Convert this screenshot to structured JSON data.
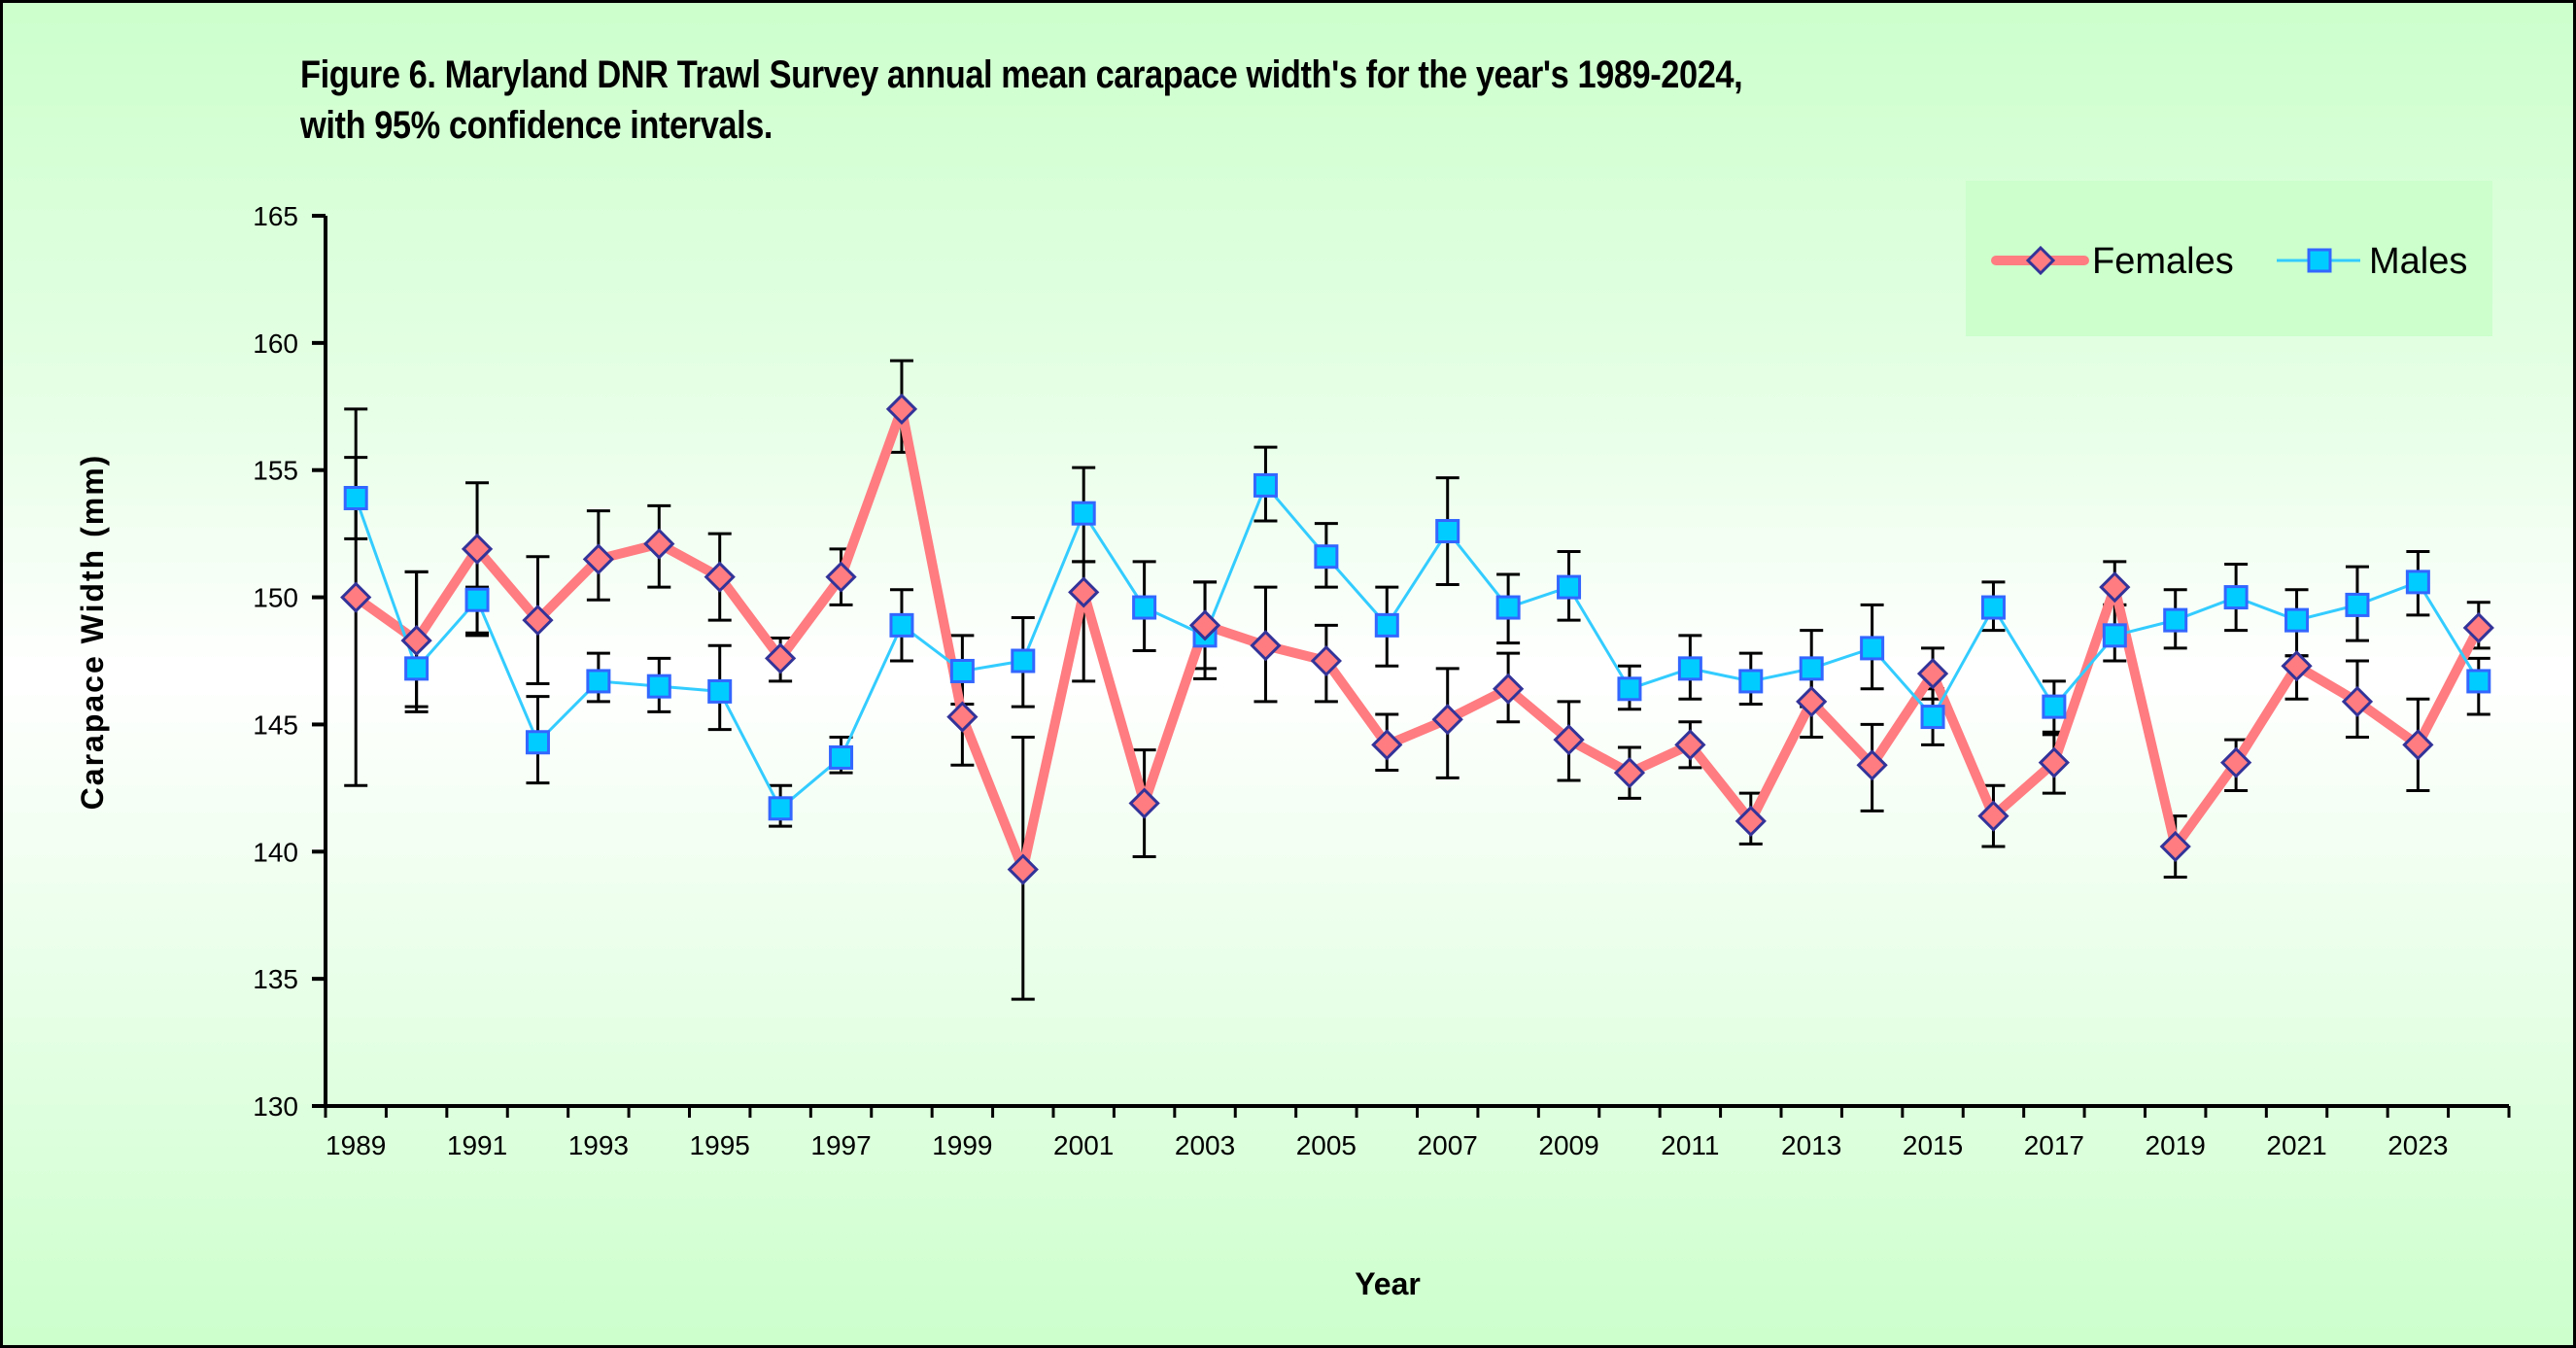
{
  "title": {
    "line1": "Figure 6.  Maryland DNR  Trawl Survey annual mean carapace width's for the year's 1989-2024,",
    "line2": "with 95%  confidence intervals."
  },
  "colors": {
    "females_line": "#ff7c80",
    "females_marker_fill": "#ff7c80",
    "females_marker_stroke": "#333399",
    "males_line": "#33ccff",
    "males_marker_fill": "#00ccff",
    "males_marker_stroke": "#3366ff",
    "error_bar": "#000000",
    "legend_bg": "#ccffcc"
  },
  "chart_data": {
    "type": "line",
    "title": "Figure 6.  Maryland DNR  Trawl Survey annual mean carapace width's for the year's 1989-2024, with 95%  confidence intervals.",
    "xlabel": "Year",
    "ylabel": "Carapace Width (mm)",
    "ylim": [
      130,
      165
    ],
    "yticks": [
      130,
      135,
      140,
      145,
      150,
      155,
      160,
      165
    ],
    "grid": false,
    "legend_position": "top-right",
    "x": [
      1989,
      1990,
      1991,
      1992,
      1993,
      1994,
      1995,
      1996,
      1997,
      1998,
      1999,
      2000,
      2001,
      2002,
      2003,
      2004,
      2005,
      2006,
      2007,
      2008,
      2009,
      2010,
      2011,
      2012,
      2013,
      2014,
      2015,
      2016,
      2017,
      2018,
      2019,
      2020,
      2021,
      2022,
      2023,
      2024
    ],
    "xtick_labels": [
      "1989",
      "1991",
      "1993",
      "1995",
      "1997",
      "1999",
      "2001",
      "2003",
      "2005",
      "2007",
      "2009",
      "2011",
      "2013",
      "2015",
      "2017",
      "2019",
      "2021",
      "2023"
    ],
    "series": [
      {
        "name": "Females",
        "values": [
          150.0,
          148.3,
          151.9,
          149.1,
          151.5,
          152.1,
          150.8,
          147.6,
          150.8,
          157.4,
          145.3,
          139.3,
          150.2,
          141.9,
          148.9,
          148.1,
          147.5,
          144.2,
          145.2,
          146.4,
          144.4,
          143.1,
          144.2,
          141.2,
          145.9,
          143.4,
          147.0,
          141.4,
          143.5,
          150.4,
          140.2,
          143.5,
          147.3,
          145.9,
          144.2,
          148.8
        ],
        "ci_low": [
          142.6,
          145.5,
          148.5,
          146.6,
          149.9,
          150.4,
          149.1,
          146.7,
          149.7,
          155.7,
          143.4,
          134.2,
          146.7,
          139.8,
          147.2,
          145.9,
          145.9,
          143.2,
          142.9,
          145.1,
          142.8,
          142.1,
          143.3,
          140.3,
          144.5,
          141.6,
          146.0,
          140.2,
          142.3,
          149.7,
          139.0,
          142.4,
          146.0,
          144.5,
          142.4,
          148.0
        ],
        "ci_high": [
          157.4,
          151.0,
          154.5,
          151.6,
          153.4,
          153.6,
          152.5,
          148.4,
          151.9,
          159.3,
          147.2,
          144.5,
          151.4,
          144.0,
          150.6,
          150.4,
          148.9,
          145.4,
          147.2,
          147.8,
          145.9,
          144.1,
          145.1,
          142.3,
          147.3,
          145.0,
          148.0,
          142.6,
          144.7,
          151.4,
          141.4,
          144.4,
          147.7,
          147.5,
          146.0,
          149.8
        ]
      },
      {
        "name": "Males",
        "values": [
          153.9,
          147.2,
          149.9,
          144.3,
          146.7,
          146.5,
          146.3,
          141.7,
          143.7,
          148.9,
          147.1,
          147.5,
          153.3,
          149.6,
          148.5,
          154.4,
          151.6,
          148.9,
          152.6,
          149.6,
          150.4,
          146.4,
          147.2,
          146.7,
          147.2,
          148.0,
          145.3,
          149.6,
          145.7,
          148.5,
          149.1,
          150.0,
          149.1,
          149.7,
          150.6,
          146.7
        ],
        "ci_low": [
          152.3,
          145.7,
          148.6,
          142.7,
          145.9,
          145.5,
          144.8,
          141.0,
          143.1,
          147.5,
          145.8,
          145.7,
          151.4,
          147.9,
          146.8,
          153.0,
          150.4,
          147.3,
          150.5,
          148.2,
          149.1,
          145.6,
          146.0,
          145.8,
          145.7,
          146.4,
          144.2,
          148.7,
          144.6,
          147.5,
          148.0,
          148.7,
          147.7,
          148.3,
          149.3,
          145.4
        ],
        "ci_high": [
          155.5,
          151.0,
          150.4,
          146.1,
          147.8,
          147.6,
          148.1,
          142.6,
          144.5,
          150.3,
          148.5,
          149.2,
          155.1,
          151.4,
          150.6,
          155.9,
          152.9,
          150.4,
          154.7,
          150.9,
          151.8,
          147.3,
          148.5,
          147.8,
          148.7,
          149.7,
          146.4,
          150.6,
          146.7,
          149.7,
          150.3,
          151.3,
          150.3,
          151.2,
          151.8,
          147.6
        ]
      }
    ]
  }
}
